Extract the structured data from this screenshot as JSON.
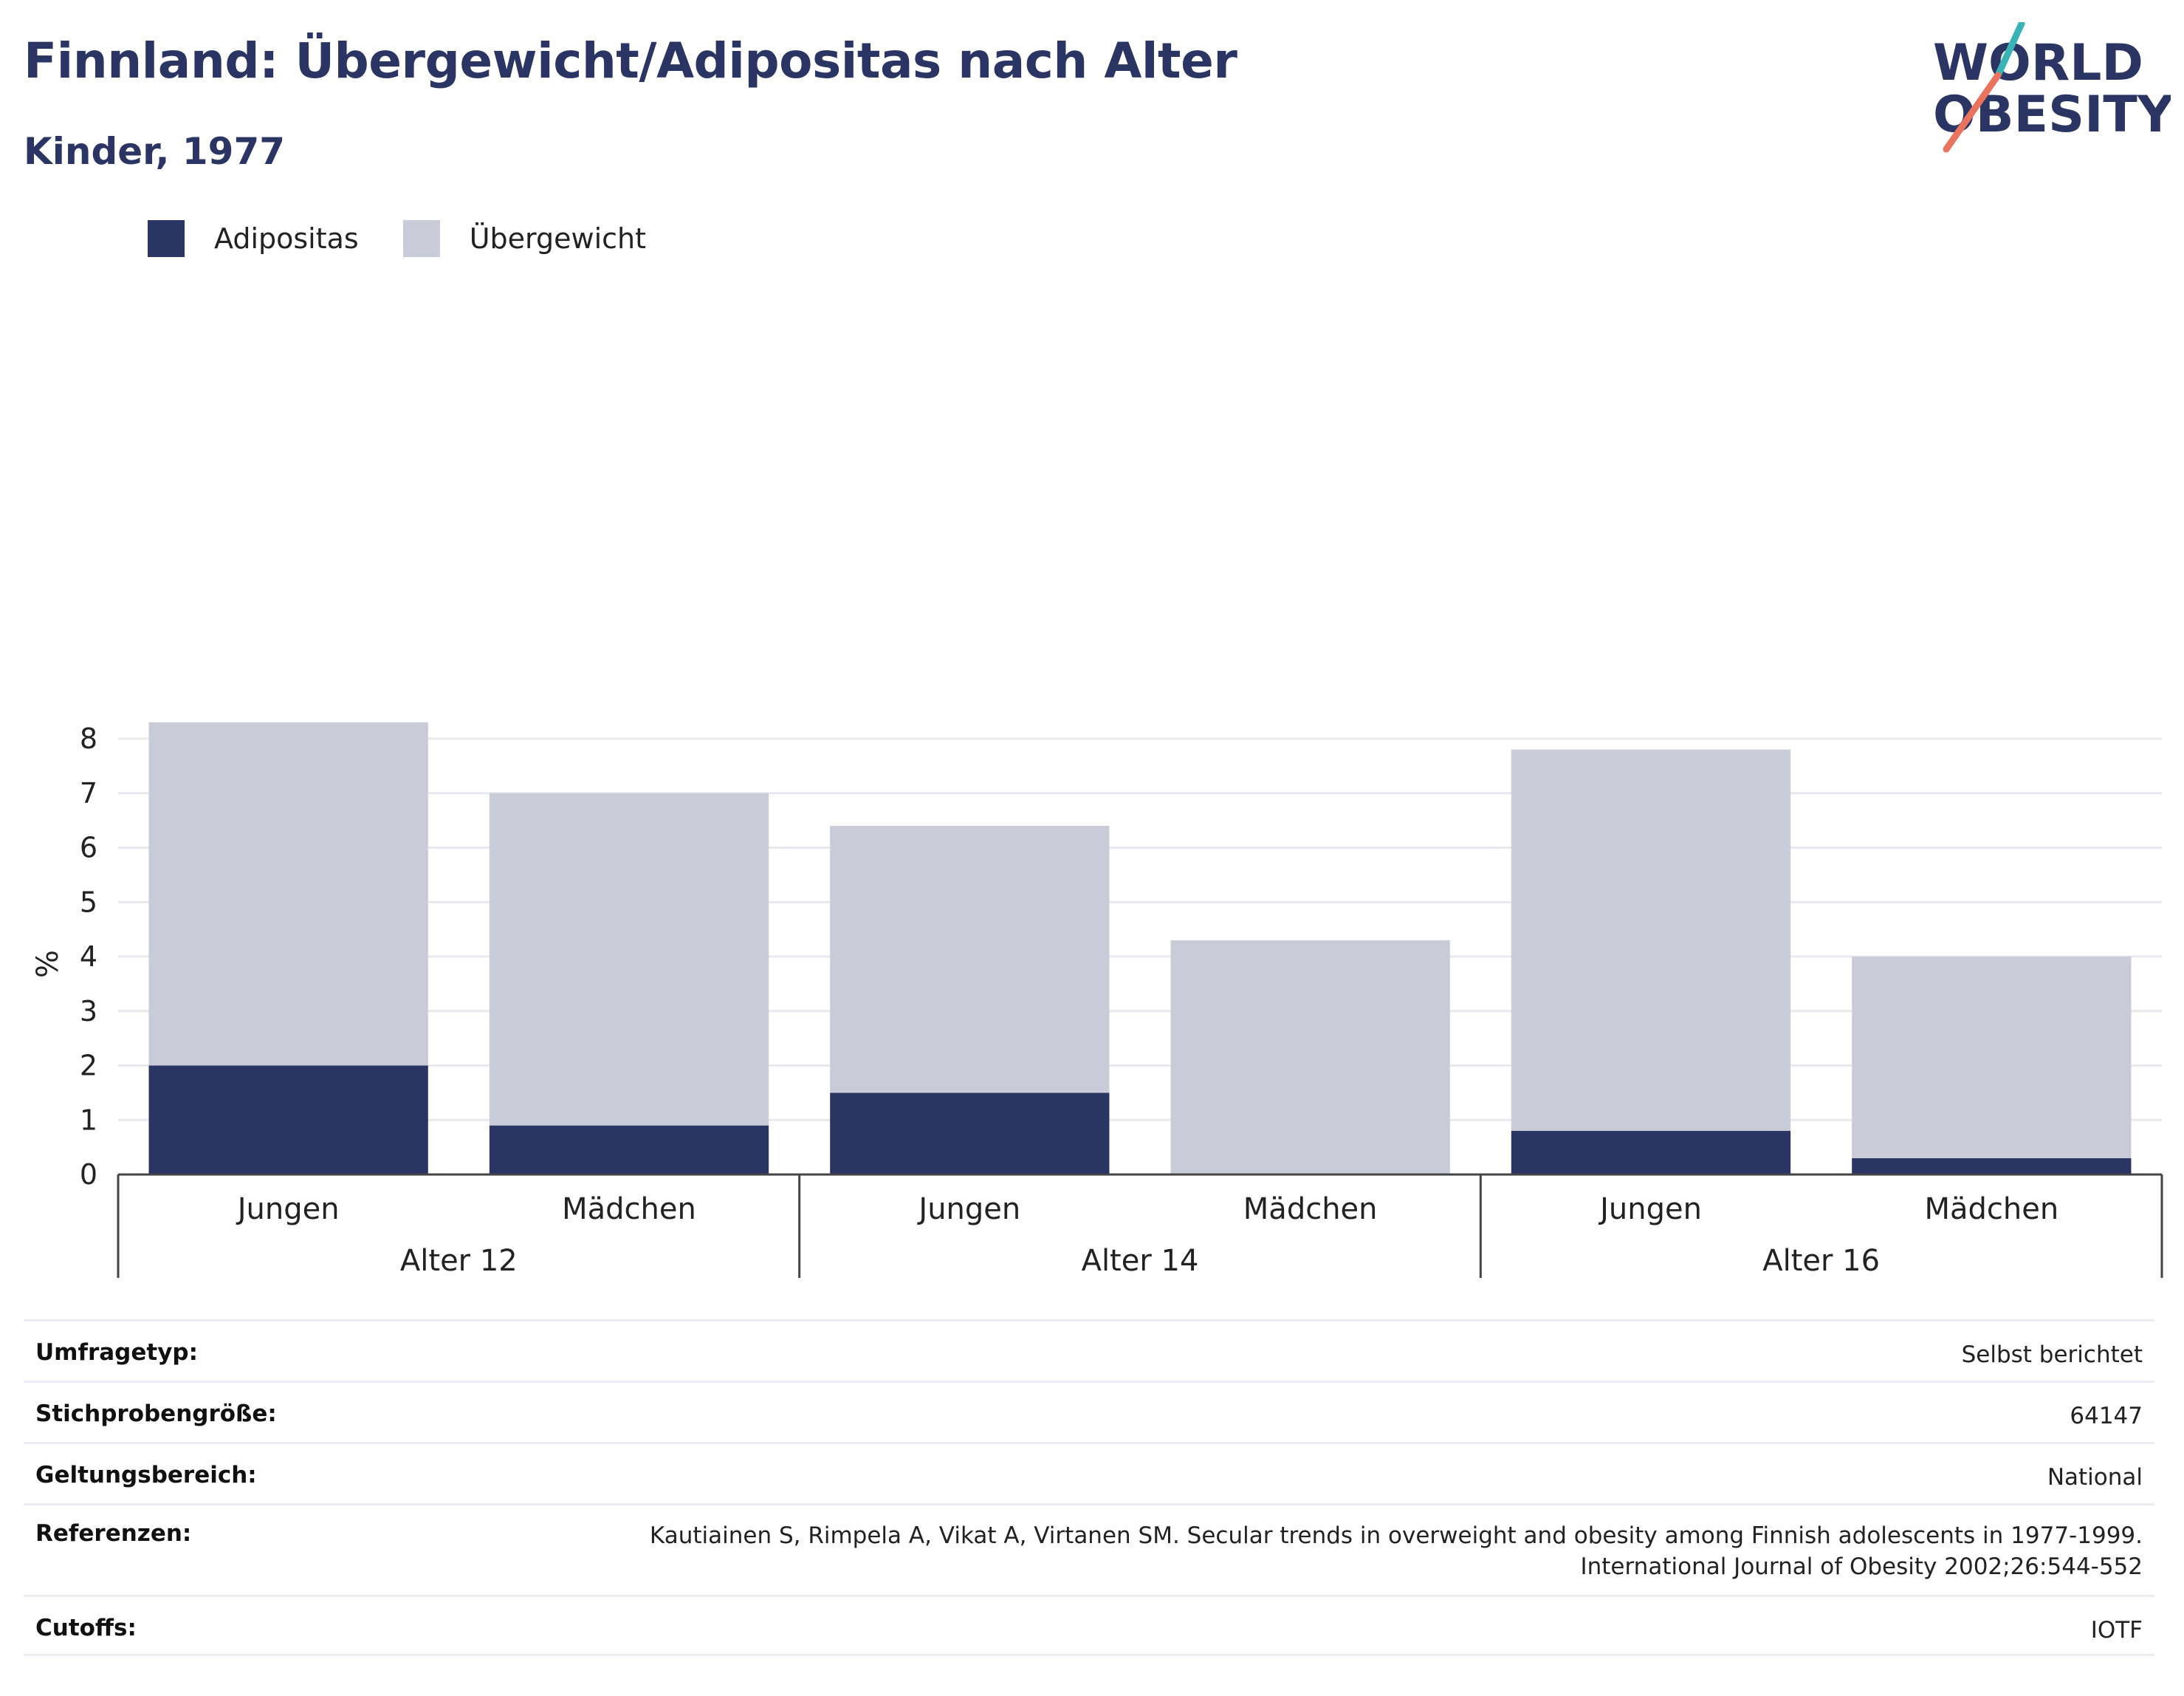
{
  "header": {
    "title": "Finnland: Übergewicht/Adipositas nach Alter",
    "subtitle": "Kinder, 1977"
  },
  "logo": {
    "line1": "WORLD",
    "line2": "OBESITY"
  },
  "legend": [
    {
      "label": "Adipositas",
      "color": "#2a3563"
    },
    {
      "label": "Übergewicht",
      "color": "#c9ccd8"
    }
  ],
  "chart_data": {
    "type": "bar",
    "stacked": true,
    "title": "Finnland: Übergewicht/Adipositas nach Alter",
    "subtitle": "Kinder, 1977",
    "ylabel": "%",
    "ylim": [
      0,
      8.4
    ],
    "yticks": [
      0,
      1,
      2,
      3,
      4,
      5,
      6,
      7,
      8
    ],
    "grid": true,
    "legend_position": "top-left",
    "groups": [
      {
        "label": "Alter 12",
        "categories": [
          "Jungen",
          "Mädchen"
        ]
      },
      {
        "label": "Alter 14",
        "categories": [
          "Jungen",
          "Mädchen"
        ]
      },
      {
        "label": "Alter 16",
        "categories": [
          "Jungen",
          "Mädchen"
        ]
      }
    ],
    "series": [
      {
        "name": "Adipositas",
        "color": "#2a3563",
        "values": [
          2.0,
          0.9,
          1.5,
          0.0,
          0.8,
          0.3
        ]
      },
      {
        "name": "Übergewicht",
        "color": "#c9ccd8",
        "values": [
          6.3,
          6.1,
          4.9,
          4.3,
          7.0,
          3.7
        ]
      }
    ]
  },
  "info": [
    {
      "key": "Umfragetyp:",
      "value": "Selbst berichtet"
    },
    {
      "key": "Stichprobengröße:",
      "value": "64147"
    },
    {
      "key": "Geltungsbereich:",
      "value": "National"
    },
    {
      "key": "Referenzen:",
      "value": "Kautiainen S, Rimpela A, Vikat A, Virtanen SM. Secular trends in overweight and obesity among Finnish adolescents in 1977-1999. International Journal of Obesity 2002;26:544-552"
    },
    {
      "key": "Cutoffs:",
      "value": "IOTF"
    }
  ]
}
